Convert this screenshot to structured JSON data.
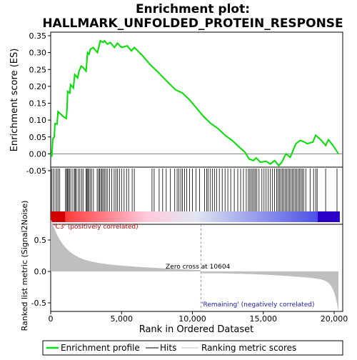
{
  "chart_data": {
    "type": "line",
    "title_line1": "Enrichment plot:",
    "title_line2": "HALLMARK_UNFOLDED_PROTEIN_RESPONSE",
    "es_ylabel": "Enrichment score (ES)",
    "metric_ylabel": "Ranked list metric (Signal2Noise)",
    "xlabel": "Rank in Ordered Dataset",
    "xlim": [
      0,
      20604
    ],
    "es_ylim": [
      -0.05,
      0.35
    ],
    "metric_ylim": [
      -0.7,
      0.9
    ],
    "x_ticks": [
      0,
      5000,
      10000,
      15000,
      20000
    ],
    "x_tick_labels": [
      "0",
      "5,000",
      "10,000",
      "15,000",
      "20,000"
    ],
    "es_ticks": [
      -0.05,
      0.0,
      0.05,
      0.1,
      0.15,
      0.2,
      0.25,
      0.3,
      0.35
    ],
    "es_tick_labels": [
      "-0.05",
      "0.00",
      "0.05",
      "0.10",
      "0.15",
      "0.20",
      "0.25",
      "0.30",
      "0.35"
    ],
    "metric_ticks": [
      -0.5,
      0.0,
      0.5
    ],
    "metric_tick_labels": [
      "-0.5",
      "0.0",
      "0.5"
    ],
    "zero_cross_rank": 10604,
    "zero_cross_label": "Zero cross at 10604",
    "positive_label": "'C3' (positively correlated)",
    "negative_label": "'Remaining' (negatively correlated)",
    "legend": [
      "Enrichment profile",
      "Hits",
      "Ranking metric scores"
    ],
    "colors": {
      "profile": "#00e000",
      "hits": "#000000",
      "metric_fill": "#bfbfbf",
      "positive_text": "#d00000",
      "negative_text": "#2020c0",
      "zero_line": "#a0a0a0"
    },
    "es_curve": [
      [
        0,
        0.0
      ],
      [
        80,
        -0.005
      ],
      [
        150,
        0.045
      ],
      [
        250,
        0.05
      ],
      [
        300,
        0.09
      ],
      [
        450,
        0.088
      ],
      [
        520,
        0.125
      ],
      [
        900,
        0.11
      ],
      [
        1100,
        0.105
      ],
      [
        1150,
        0.13
      ],
      [
        1200,
        0.185
      ],
      [
        1350,
        0.18
      ],
      [
        1400,
        0.205
      ],
      [
        1600,
        0.195
      ],
      [
        1700,
        0.235
      ],
      [
        1900,
        0.225
      ],
      [
        2000,
        0.245
      ],
      [
        2150,
        0.26
      ],
      [
        2300,
        0.255
      ],
      [
        2500,
        0.245
      ],
      [
        2600,
        0.3
      ],
      [
        2700,
        0.295
      ],
      [
        2800,
        0.31
      ],
      [
        3000,
        0.315
      ],
      [
        3300,
        0.3
      ],
      [
        3500,
        0.335
      ],
      [
        3700,
        0.33
      ],
      [
        3800,
        0.335
      ],
      [
        4000,
        0.325
      ],
      [
        4200,
        0.33
      ],
      [
        4500,
        0.315
      ],
      [
        4700,
        0.328
      ],
      [
        5000,
        0.315
      ],
      [
        5400,
        0.32
      ],
      [
        5700,
        0.305
      ],
      [
        5900,
        0.315
      ],
      [
        6500,
        0.29
      ],
      [
        7000,
        0.265
      ],
      [
        7500,
        0.245
      ],
      [
        8200,
        0.215
      ],
      [
        8800,
        0.19
      ],
      [
        9300,
        0.18
      ],
      [
        9800,
        0.16
      ],
      [
        10300,
        0.135
      ],
      [
        10800,
        0.11
      ],
      [
        11300,
        0.09
      ],
      [
        11800,
        0.075
      ],
      [
        12300,
        0.055
      ],
      [
        12800,
        0.04
      ],
      [
        13300,
        0.02
      ],
      [
        13700,
        0.005
      ],
      [
        14000,
        -0.015
      ],
      [
        14300,
        -0.02
      ],
      [
        14500,
        -0.012
      ],
      [
        14800,
        -0.025
      ],
      [
        15200,
        -0.022
      ],
      [
        15500,
        -0.03
      ],
      [
        15800,
        -0.02
      ],
      [
        16100,
        -0.035
      ],
      [
        16300,
        -0.025
      ],
      [
        16600,
        0.0
      ],
      [
        16900,
        -0.01
      ],
      [
        17100,
        0.01
      ],
      [
        17300,
        0.03
      ],
      [
        17600,
        0.04
      ],
      [
        17900,
        0.035
      ],
      [
        18100,
        0.03
      ],
      [
        18500,
        0.035
      ],
      [
        18700,
        0.055
      ],
      [
        19100,
        0.04
      ],
      [
        19400,
        0.025
      ],
      [
        19600,
        0.042
      ],
      [
        20000,
        0.02
      ],
      [
        20300,
        0.0
      ]
    ],
    "hits": [
      60,
      180,
      300,
      420,
      520,
      640,
      1050,
      1120,
      1180,
      1260,
      1320,
      1420,
      1560,
      1680,
      1740,
      1820,
      1960,
      2060,
      2180,
      2280,
      2500,
      2560,
      2620,
      2680,
      2780,
      2880,
      3020,
      3280,
      3380,
      3450,
      3540,
      3620,
      3700,
      3800,
      3900,
      4020,
      4150,
      4300,
      4480,
      4600,
      4720,
      4850,
      5000,
      5180,
      5350,
      5500,
      5750,
      5900,
      7150,
      7300,
      7650,
      7900,
      8150,
      8450,
      8750,
      8920,
      9050,
      9180,
      9300,
      9450,
      9600,
      9800,
      10000,
      10250,
      10500,
      10850,
      11000,
      11100,
      11250,
      11400,
      11550,
      11700,
      11900,
      12100,
      12300,
      12500,
      12700,
      12950,
      13200,
      13400,
      13600,
      13800,
      13950,
      14050,
      14150,
      14250,
      14350,
      14450,
      14550,
      14700,
      14900,
      15050,
      15200,
      15350,
      15500,
      15650,
      15800,
      15950,
      16050,
      16150,
      16250,
      16350,
      16450,
      16550,
      16650,
      16750,
      16850,
      16950,
      17050,
      17150,
      17250,
      17350,
      17450,
      17550,
      17650,
      17750,
      17850,
      18000,
      18300,
      18550,
      18700,
      18800,
      19400,
      20200
    ]
  }
}
